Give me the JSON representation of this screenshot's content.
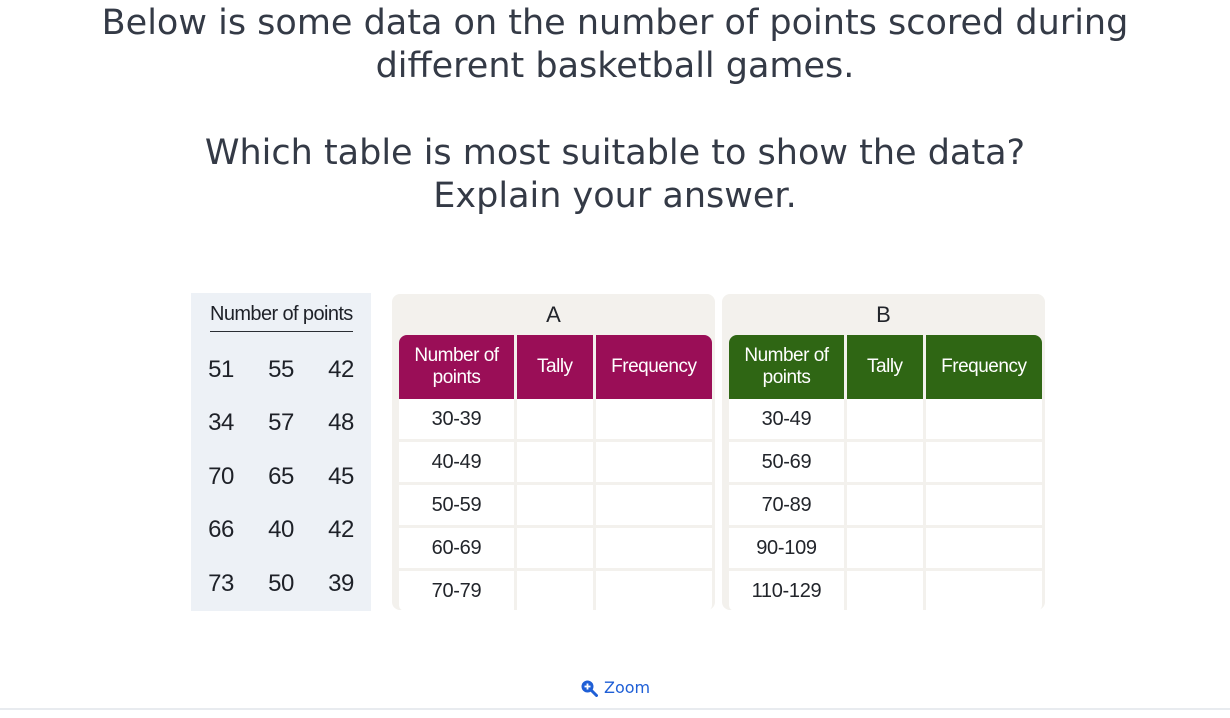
{
  "question": {
    "line1": "Below is some data on the number of points scored during different basketball games.",
    "line2": "Which table is most suitable to show the data?",
    "line3": "Explain your answer."
  },
  "raw_data": {
    "title": "Number of points",
    "rows": [
      [
        "51",
        "55",
        "42"
      ],
      [
        "34",
        "57",
        "48"
      ],
      [
        "70",
        "65",
        "45"
      ],
      [
        "66",
        "40",
        "42"
      ],
      [
        "73",
        "50",
        "39"
      ]
    ]
  },
  "table_a": {
    "letter": "A",
    "header_color": "#9a0e57",
    "headers": [
      "Number of points",
      "Tally",
      "Frequency"
    ],
    "rows": [
      "30-39",
      "40-49",
      "50-59",
      "60-69",
      "70-79"
    ]
  },
  "table_b": {
    "letter": "B",
    "header_color": "#2f6614",
    "headers": [
      "Number of points",
      "Tally",
      "Frequency"
    ],
    "rows": [
      "30-49",
      "50-69",
      "70-89",
      "90-109",
      "110-129"
    ]
  },
  "zoom": {
    "label": "Zoom",
    "icon": "zoom-in-icon"
  }
}
